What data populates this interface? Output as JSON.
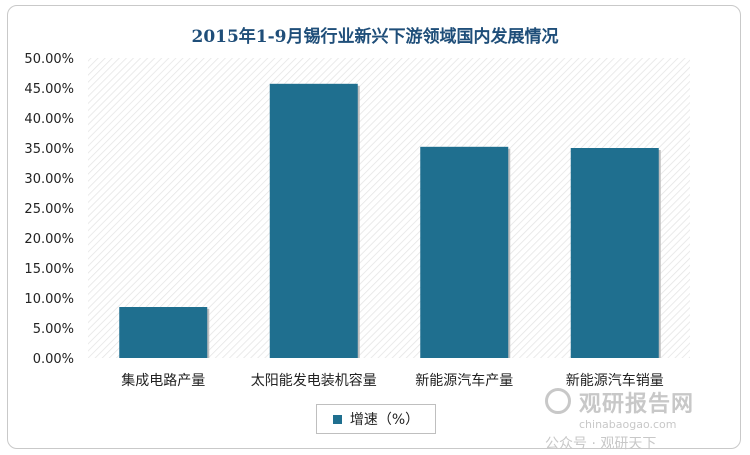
{
  "chart_data": {
    "type": "bar",
    "title": "2015年1-9月锡行业新兴下游领域国内发展情况",
    "categories": [
      "集成电路产量",
      "太阳能发电装机容量",
      "新能源汽车产量",
      "新能源汽车销量"
    ],
    "series": [
      {
        "name": "增速（%）",
        "values": [
          8.5,
          45.7,
          35.2,
          35.0
        ],
        "color": "#1f6f8f"
      }
    ],
    "ylim": [
      0,
      50
    ],
    "yticks": [
      "0.00%",
      "5.00%",
      "10.00%",
      "15.00%",
      "20.00%",
      "25.00%",
      "30.00%",
      "35.00%",
      "40.00%",
      "45.00%",
      "50.00%"
    ],
    "ytick_values": [
      0,
      5,
      10,
      15,
      20,
      25,
      30,
      35,
      40,
      45,
      50
    ],
    "legend_position": "bottom",
    "plot_background": "hatched"
  },
  "watermark": {
    "brand": "观研报告网",
    "url": "chinabaogao.com",
    "sub": "公众号 · 观研天下"
  }
}
